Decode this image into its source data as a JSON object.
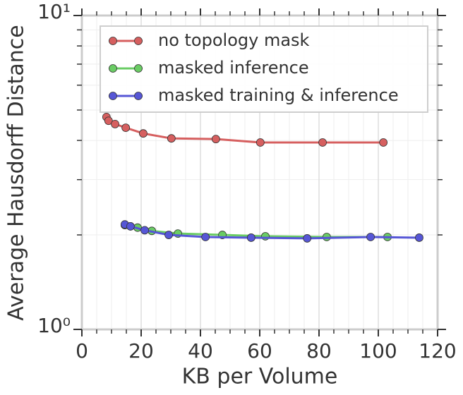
{
  "chart_data": {
    "type": "line",
    "xlabel": "KB per Volume",
    "ylabel": "Average Hausdorff Distance",
    "xlim": [
      0,
      120
    ],
    "xticks": [
      0,
      20,
      40,
      60,
      80,
      100,
      120
    ],
    "xminorticks": [
      5,
      10,
      15,
      25,
      30,
      35,
      45,
      50,
      55,
      65,
      70,
      75,
      85,
      90,
      95,
      105,
      110,
      115
    ],
    "ylim": [
      1,
      10
    ],
    "yscale": "log",
    "yticks": [
      {
        "value": 1,
        "label": "10⁰"
      },
      {
        "value": 10,
        "label": "10¹"
      }
    ],
    "yminorticks": [
      2,
      3,
      4,
      5,
      6,
      7,
      8,
      9
    ],
    "grid": true,
    "legend": "upper left",
    "series": [
      {
        "name": "no topology mask",
        "color": "#d65f5f",
        "x": [
          8.3,
          9.0,
          11.2,
          14.8,
          20.7,
          30.2,
          45.2,
          60.2,
          81.2,
          101.7
        ],
        "values": [
          4.75,
          4.62,
          4.51,
          4.39,
          4.21,
          4.06,
          4.04,
          3.94,
          3.94,
          3.94
        ]
      },
      {
        "name": "masked inference",
        "color": "#6acc64",
        "x": [
          14.5,
          16.4,
          18.8,
          23.6,
          32.4,
          47.4,
          61.9,
          82.6,
          103.1
        ],
        "values": [
          2.15,
          2.13,
          2.11,
          2.06,
          2.02,
          2.0,
          1.98,
          1.97,
          1.97
        ]
      },
      {
        "name": "masked training & inference",
        "color": "#5656d6",
        "x": [
          14.5,
          16.4,
          21.2,
          29.3,
          41.7,
          57.1,
          76.0,
          97.4,
          113.8
        ],
        "values": [
          2.16,
          2.13,
          2.07,
          2.0,
          1.97,
          1.96,
          1.95,
          1.97,
          1.96
        ]
      }
    ]
  }
}
